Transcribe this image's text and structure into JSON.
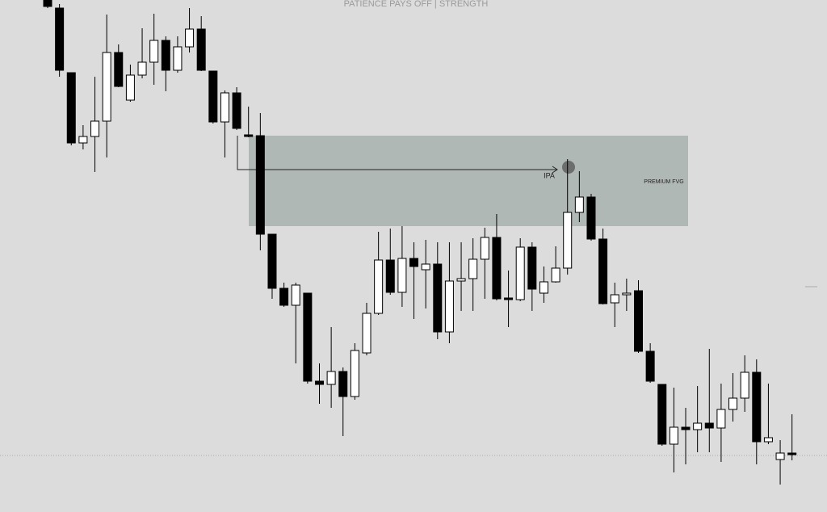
{
  "chart_data": {
    "type": "candlestick",
    "title": "PATIENCE PAYS OFF | STRENGTH",
    "ylim": [
      0,
      634
    ],
    "bull_color": "#ffffff",
    "bear_color": "#000000",
    "open": [
      634,
      624,
      544,
      457,
      465,
      484,
      569,
      510,
      541,
      557,
      584,
      547,
      576,
      598,
      546,
      483,
      519,
      467,
      466,
      344,
      277,
      256,
      271,
      162,
      158,
      174,
      143,
      197,
      246,
      312,
      272,
      314,
      300,
      307,
      223,
      286,
      289,
      313,
      340,
      265,
      263,
      328,
      271,
      285,
      302,
      371,
      390,
      338,
      259,
      269,
      274,
      199,
      158,
      84,
      105,
      102,
      110,
      104,
      127,
      141,
      173,
      87,
      65,
      73
    ],
    "high": [
      634,
      629,
      544,
      479,
      539,
      616,
      579,
      554,
      599,
      617,
      589,
      589,
      624,
      614,
      546,
      522,
      526,
      502,
      494,
      344,
      284,
      284,
      271,
      184,
      229,
      179,
      209,
      259,
      347,
      351,
      354,
      334,
      337,
      334,
      334,
      334,
      339,
      352,
      369,
      299,
      339,
      334,
      304,
      329,
      437,
      422,
      394,
      351,
      284,
      289,
      287,
      209,
      158,
      154,
      129,
      156,
      202,
      159,
      172,
      194,
      189,
      159,
      89,
      121
    ],
    "low": [
      624,
      539,
      454,
      449,
      421,
      439,
      526,
      508,
      537,
      529,
      521,
      544,
      569,
      546,
      481,
      439,
      473,
      464,
      324,
      264,
      254,
      184,
      159,
      134,
      129,
      94,
      139,
      194,
      244,
      269,
      254,
      239,
      252,
      214,
      209,
      249,
      249,
      264,
      262,
      229,
      261,
      249,
      259,
      284,
      294,
      359,
      336,
      257,
      229,
      249,
      197,
      160,
      82,
      49,
      59,
      74,
      74,
      62,
      112,
      124,
      59,
      84,
      34,
      64
    ],
    "close": [
      626,
      547,
      457,
      465,
      484,
      569,
      527,
      541,
      557,
      584,
      547,
      576,
      598,
      547,
      483,
      519,
      475,
      465,
      344,
      277,
      256,
      281,
      162,
      158,
      174,
      143,
      200,
      246,
      312,
      272,
      314,
      304,
      307,
      223,
      286,
      289,
      313,
      340,
      264,
      263,
      328,
      276,
      285,
      302,
      371,
      390,
      338,
      258,
      269,
      271,
      199,
      162,
      84,
      105,
      102,
      110,
      104,
      127,
      141,
      173,
      87,
      92,
      73,
      71
    ],
    "zone": {
      "label": "PREMIUM FVG",
      "top": 466,
      "bottom": 354,
      "color": "#b0b8b6"
    },
    "annotation": {
      "text": "IPA",
      "value": 424
    },
    "hline": 70
  }
}
